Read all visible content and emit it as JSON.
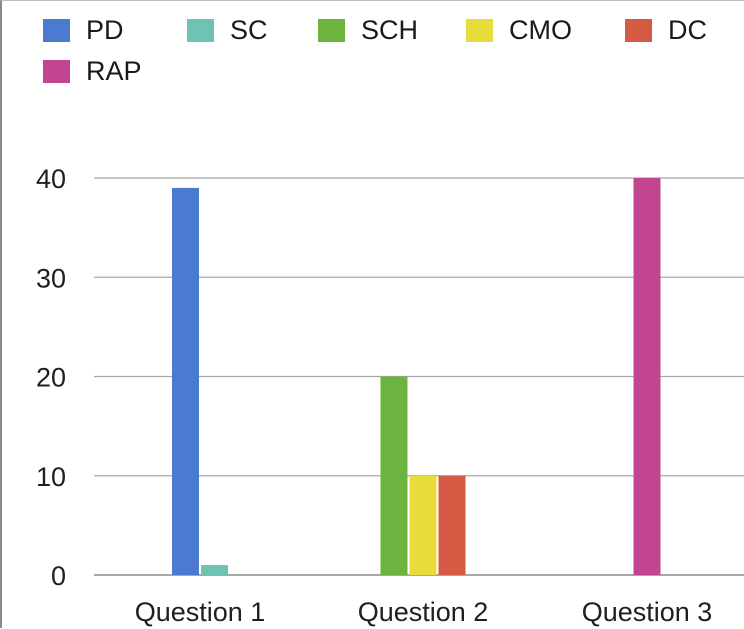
{
  "chart_data": {
    "type": "bar",
    "categories": [
      "Question 1",
      "Question 2",
      "Question 3"
    ],
    "series": [
      {
        "name": "PD",
        "color": "#4a7bd0",
        "values": [
          39,
          0,
          0
        ]
      },
      {
        "name": "SC",
        "color": "#6fc2b4",
        "values": [
          1,
          0,
          0
        ]
      },
      {
        "name": "SCH",
        "color": "#6db33f",
        "values": [
          0,
          20,
          0
        ]
      },
      {
        "name": "CMO",
        "color": "#e8dc3c",
        "values": [
          0,
          10,
          0
        ]
      },
      {
        "name": "DC",
        "color": "#d55a44",
        "values": [
          0,
          10,
          0
        ]
      },
      {
        "name": "RAP",
        "color": "#c1468f",
        "values": [
          0,
          0,
          40
        ]
      }
    ],
    "yticks": [
      0,
      10,
      20,
      30,
      40
    ],
    "ylim": [
      0,
      40
    ],
    "grid": true,
    "legend": "top"
  }
}
